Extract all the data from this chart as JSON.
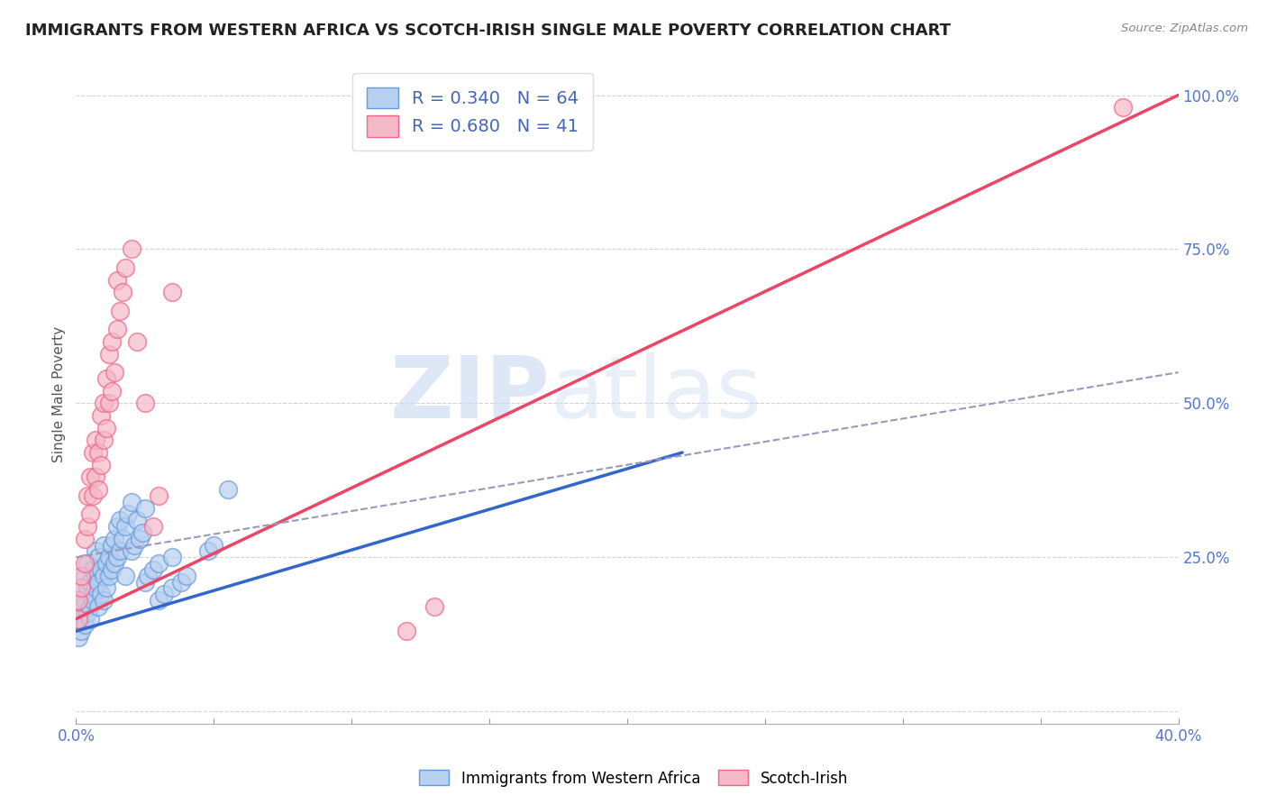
{
  "title": "IMMIGRANTS FROM WESTERN AFRICA VS SCOTCH-IRISH SINGLE MALE POVERTY CORRELATION CHART",
  "source": "Source: ZipAtlas.com",
  "ylabel": "Single Male Poverty",
  "xlim": [
    0.0,
    0.4
  ],
  "ylim": [
    -0.02,
    1.05
  ],
  "blue_R": 0.34,
  "blue_N": 64,
  "pink_R": 0.68,
  "pink_N": 41,
  "blue_color": "#b8d0f0",
  "pink_color": "#f5b8c8",
  "blue_edge_color": "#6699dd",
  "pink_edge_color": "#ee6688",
  "blue_line_color": "#3366cc",
  "pink_line_color": "#ee4466",
  "dashed_line_color": "#9999bb",
  "watermark_text": "ZIP",
  "watermark_text2": "atlas",
  "legend_label_blue": "Immigrants from Western Africa",
  "legend_label_pink": "Scotch-Irish",
  "blue_scatter": [
    [
      0.001,
      0.12
    ],
    [
      0.001,
      0.15
    ],
    [
      0.002,
      0.13
    ],
    [
      0.002,
      0.17
    ],
    [
      0.002,
      0.2
    ],
    [
      0.003,
      0.14
    ],
    [
      0.003,
      0.18
    ],
    [
      0.003,
      0.22
    ],
    [
      0.004,
      0.16
    ],
    [
      0.004,
      0.2
    ],
    [
      0.004,
      0.24
    ],
    [
      0.005,
      0.17
    ],
    [
      0.005,
      0.21
    ],
    [
      0.005,
      0.15
    ],
    [
      0.006,
      0.19
    ],
    [
      0.006,
      0.23
    ],
    [
      0.006,
      0.18
    ],
    [
      0.007,
      0.22
    ],
    [
      0.007,
      0.26
    ],
    [
      0.007,
      0.2
    ],
    [
      0.008,
      0.21
    ],
    [
      0.008,
      0.25
    ],
    [
      0.008,
      0.17
    ],
    [
      0.009,
      0.23
    ],
    [
      0.009,
      0.19
    ],
    [
      0.01,
      0.22
    ],
    [
      0.01,
      0.27
    ],
    [
      0.01,
      0.18
    ],
    [
      0.011,
      0.24
    ],
    [
      0.011,
      0.2
    ],
    [
      0.012,
      0.25
    ],
    [
      0.012,
      0.22
    ],
    [
      0.013,
      0.27
    ],
    [
      0.013,
      0.23
    ],
    [
      0.014,
      0.28
    ],
    [
      0.014,
      0.24
    ],
    [
      0.015,
      0.3
    ],
    [
      0.015,
      0.25
    ],
    [
      0.016,
      0.26
    ],
    [
      0.016,
      0.31
    ],
    [
      0.017,
      0.28
    ],
    [
      0.018,
      0.3
    ],
    [
      0.018,
      0.22
    ],
    [
      0.019,
      0.32
    ],
    [
      0.02,
      0.26
    ],
    [
      0.02,
      0.34
    ],
    [
      0.021,
      0.27
    ],
    [
      0.022,
      0.31
    ],
    [
      0.023,
      0.28
    ],
    [
      0.024,
      0.29
    ],
    [
      0.025,
      0.21
    ],
    [
      0.025,
      0.33
    ],
    [
      0.026,
      0.22
    ],
    [
      0.028,
      0.23
    ],
    [
      0.03,
      0.24
    ],
    [
      0.03,
      0.18
    ],
    [
      0.032,
      0.19
    ],
    [
      0.035,
      0.2
    ],
    [
      0.035,
      0.25
    ],
    [
      0.038,
      0.21
    ],
    [
      0.04,
      0.22
    ],
    [
      0.048,
      0.26
    ],
    [
      0.05,
      0.27
    ],
    [
      0.055,
      0.36
    ]
  ],
  "pink_scatter": [
    [
      0.001,
      0.15
    ],
    [
      0.001,
      0.18
    ],
    [
      0.002,
      0.2
    ],
    [
      0.002,
      0.22
    ],
    [
      0.003,
      0.24
    ],
    [
      0.003,
      0.28
    ],
    [
      0.004,
      0.3
    ],
    [
      0.004,
      0.35
    ],
    [
      0.005,
      0.32
    ],
    [
      0.005,
      0.38
    ],
    [
      0.006,
      0.35
    ],
    [
      0.006,
      0.42
    ],
    [
      0.007,
      0.38
    ],
    [
      0.007,
      0.44
    ],
    [
      0.008,
      0.36
    ],
    [
      0.008,
      0.42
    ],
    [
      0.009,
      0.4
    ],
    [
      0.009,
      0.48
    ],
    [
      0.01,
      0.44
    ],
    [
      0.01,
      0.5
    ],
    [
      0.011,
      0.46
    ],
    [
      0.011,
      0.54
    ],
    [
      0.012,
      0.5
    ],
    [
      0.012,
      0.58
    ],
    [
      0.013,
      0.52
    ],
    [
      0.013,
      0.6
    ],
    [
      0.014,
      0.55
    ],
    [
      0.015,
      0.62
    ],
    [
      0.015,
      0.7
    ],
    [
      0.016,
      0.65
    ],
    [
      0.017,
      0.68
    ],
    [
      0.018,
      0.72
    ],
    [
      0.02,
      0.75
    ],
    [
      0.022,
      0.6
    ],
    [
      0.025,
      0.5
    ],
    [
      0.028,
      0.3
    ],
    [
      0.03,
      0.35
    ],
    [
      0.035,
      0.68
    ],
    [
      0.12,
      0.13
    ],
    [
      0.13,
      0.17
    ],
    [
      0.38,
      0.98
    ]
  ],
  "blue_trendline": [
    [
      0.0,
      0.13
    ],
    [
      0.22,
      0.42
    ]
  ],
  "pink_trendline": [
    [
      0.0,
      0.15
    ],
    [
      0.4,
      1.0
    ]
  ],
  "dashed_trendline": [
    [
      0.0,
      0.25
    ],
    [
      0.4,
      0.55
    ]
  ]
}
